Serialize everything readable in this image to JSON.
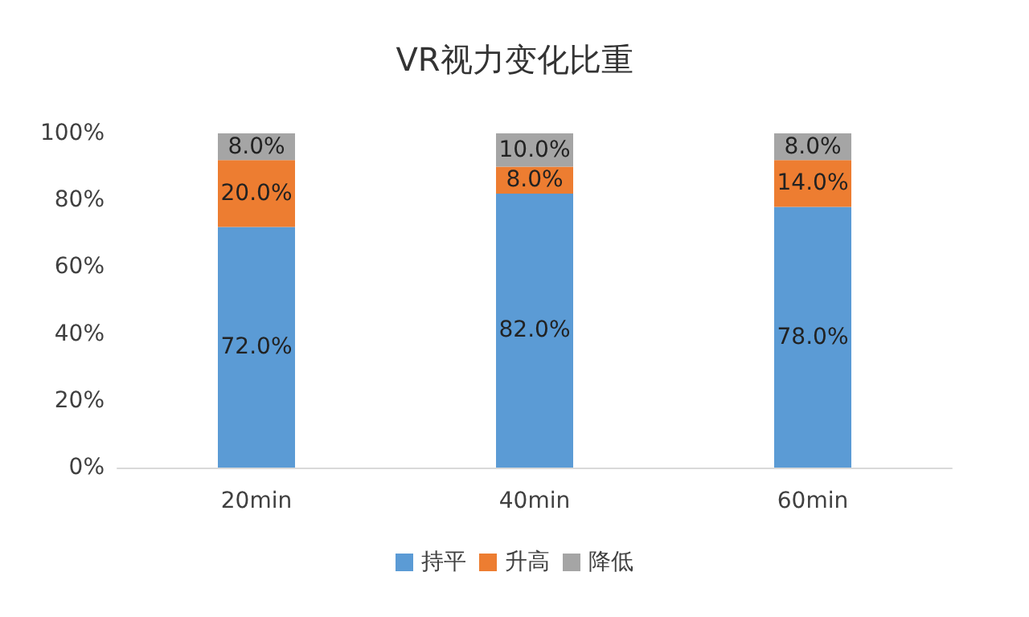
{
  "chart_data": {
    "type": "bar",
    "title": "VR视力变化比重",
    "stacked": true,
    "categories": [
      "20min",
      "40min",
      "60min"
    ],
    "series": [
      {
        "name": "持平",
        "color": "#5b9bd5",
        "values": [
          72,
          82,
          78
        ],
        "value_labels": [
          "72.0%",
          "82.0%",
          "78.0%"
        ]
      },
      {
        "name": "升高",
        "color": "#ed7d31",
        "values": [
          20,
          8,
          14
        ],
        "value_labels": [
          "20.0%",
          "8.0%",
          "14.0%"
        ]
      },
      {
        "name": "降低",
        "color": "#a5a5a5",
        "values": [
          8,
          10,
          8
        ],
        "value_labels": [
          "8.0%",
          "10.0%",
          "8.0%"
        ]
      }
    ],
    "ylim": [
      0,
      100
    ],
    "yticks": [
      {
        "value": 0,
        "label": "0%"
      },
      {
        "value": 20,
        "label": "20%"
      },
      {
        "value": 40,
        "label": "40%"
      },
      {
        "value": 60,
        "label": "60%"
      },
      {
        "value": 80,
        "label": "80%"
      },
      {
        "value": 100,
        "label": "100%"
      }
    ],
    "legend": "bottom",
    "grid": false
  }
}
